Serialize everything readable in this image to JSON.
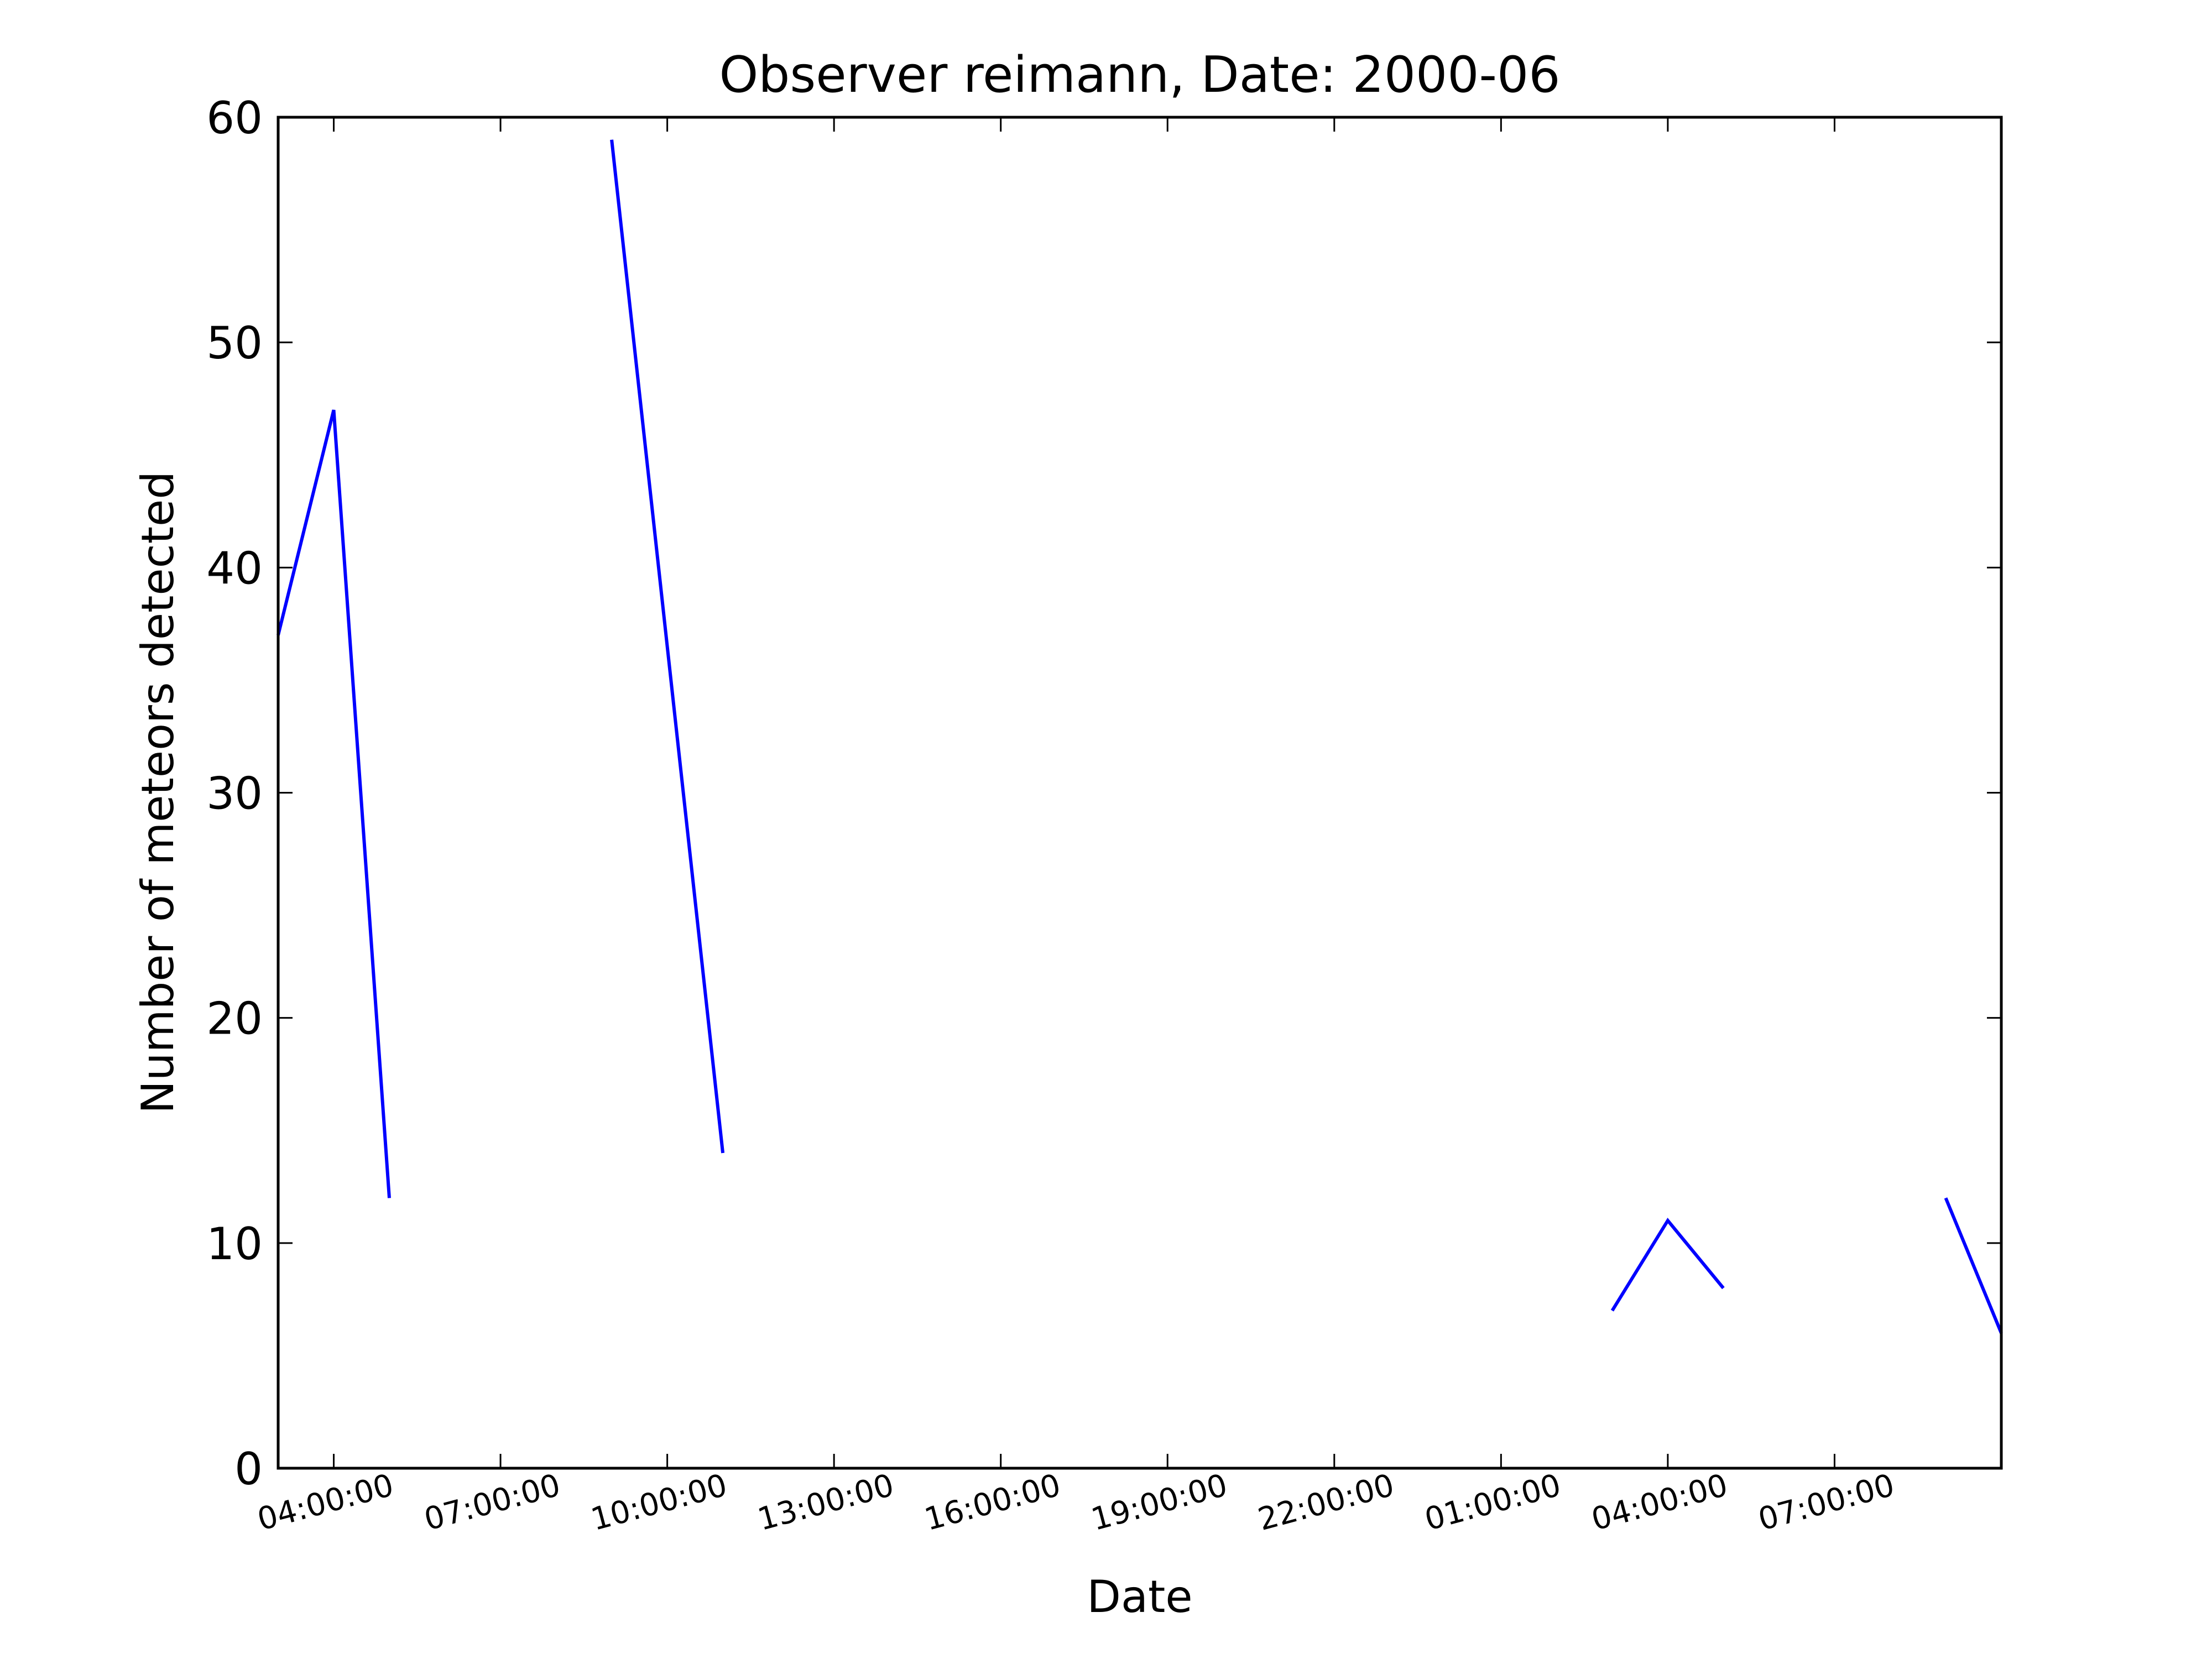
{
  "chart_data": {
    "type": "line",
    "title": "Observer reimann, Date: 2000-06",
    "xlabel": "Date",
    "ylabel": "Number of meteors detected",
    "ylim": [
      0,
      60
    ],
    "yticks": [
      0,
      10,
      20,
      30,
      40,
      50,
      60
    ],
    "xlim": [
      "2000-06 03:00",
      "2000-06 (next day) 10:00"
    ],
    "xticks": [
      {
        "value": "04:00:00",
        "hours": 1
      },
      {
        "value": "07:00:00",
        "hours": 4
      },
      {
        "value": "10:00:00",
        "hours": 7
      },
      {
        "value": "13:00:00",
        "hours": 10
      },
      {
        "value": "16:00:00",
        "hours": 13
      },
      {
        "value": "19:00:00",
        "hours": 16
      },
      {
        "value": "22:00:00",
        "hours": 19
      },
      {
        "value": "01:00:00",
        "hours": 22
      },
      {
        "value": "04:00:00",
        "hours": 25
      },
      {
        "value": "07:00:00",
        "hours": 28
      }
    ],
    "x_range_hours": [
      0,
      31
    ],
    "grid": false,
    "legend": "none",
    "series": [
      {
        "color": "#0000ff",
        "segments": [
          [
            {
              "hours": 0,
              "y": 37
            },
            {
              "hours": 1,
              "y": 47
            },
            {
              "hours": 2,
              "y": 12
            }
          ],
          [
            {
              "hours": 6,
              "y": 59
            },
            {
              "hours": 8,
              "y": 14
            }
          ],
          [
            {
              "hours": 24,
              "y": 7
            },
            {
              "hours": 25,
              "y": 11
            },
            {
              "hours": 26,
              "y": 8
            }
          ],
          [
            {
              "hours": 30,
              "y": 12
            },
            {
              "hours": 31,
              "y": 6
            }
          ]
        ]
      }
    ]
  }
}
